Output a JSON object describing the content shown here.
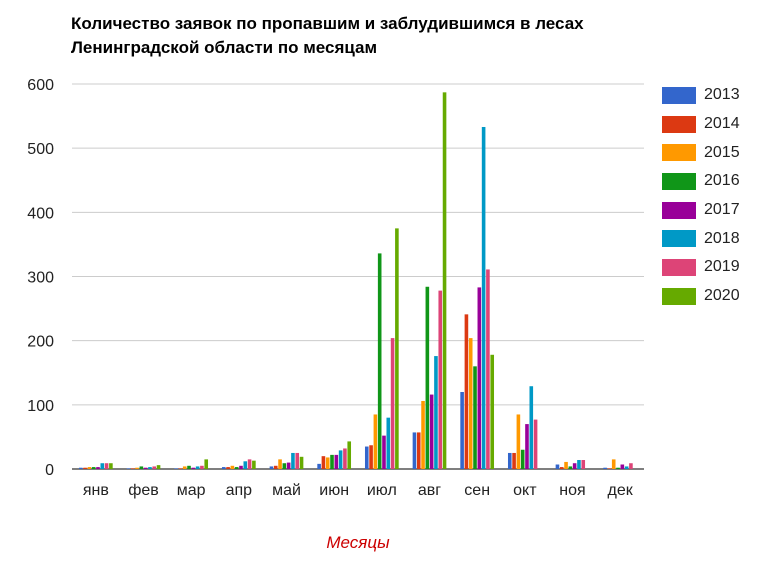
{
  "chart_data": {
    "type": "bar",
    "title_lines": [
      "Количество заявок по пропавшим и заблудившимся в лесах",
      "Ленинградской области по месяцам"
    ],
    "xlabel": "Месяцы",
    "ylabel": "",
    "ylim": [
      0,
      600
    ],
    "yticks": [
      0,
      100,
      200,
      300,
      400,
      500,
      600
    ],
    "grid": true,
    "legend_position": "right",
    "categories": [
      "янв",
      "фев",
      "мар",
      "апр",
      "май",
      "июн",
      "июл",
      "авг",
      "сен",
      "окт",
      "ноя",
      "дек"
    ],
    "series": [
      {
        "name": "2013",
        "color": "#3366cc",
        "values": [
          2,
          1,
          1,
          3,
          4,
          8,
          35,
          57,
          120,
          25,
          7,
          2
        ]
      },
      {
        "name": "2014",
        "color": "#dc3912",
        "values": [
          2,
          1,
          1,
          3,
          5,
          20,
          37,
          57,
          241,
          25,
          3,
          1
        ]
      },
      {
        "name": "2015",
        "color": "#ff9900",
        "values": [
          3,
          2,
          4,
          5,
          15,
          18,
          85,
          106,
          204,
          85,
          11,
          15
        ]
      },
      {
        "name": "2016",
        "color": "#109618",
        "values": [
          3,
          4,
          5,
          3,
          9,
          22,
          336,
          284,
          160,
          30,
          4,
          2
        ]
      },
      {
        "name": "2017",
        "color": "#990099",
        "values": [
          3,
          2,
          2,
          5,
          10,
          22,
          52,
          116,
          283,
          70,
          9,
          7
        ]
      },
      {
        "name": "2018",
        "color": "#0099c6",
        "values": [
          9,
          3,
          4,
          12,
          25,
          29,
          80,
          176,
          533,
          129,
          14,
          4
        ]
      },
      {
        "name": "2019",
        "color": "#dd4477",
        "values": [
          9,
          4,
          5,
          15,
          25,
          32,
          204,
          278,
          311,
          77,
          14,
          9
        ]
      },
      {
        "name": "2020",
        "color": "#66aa00",
        "values": [
          9,
          6,
          15,
          13,
          19,
          43,
          375,
          587,
          178,
          0,
          0,
          0
        ]
      }
    ]
  }
}
